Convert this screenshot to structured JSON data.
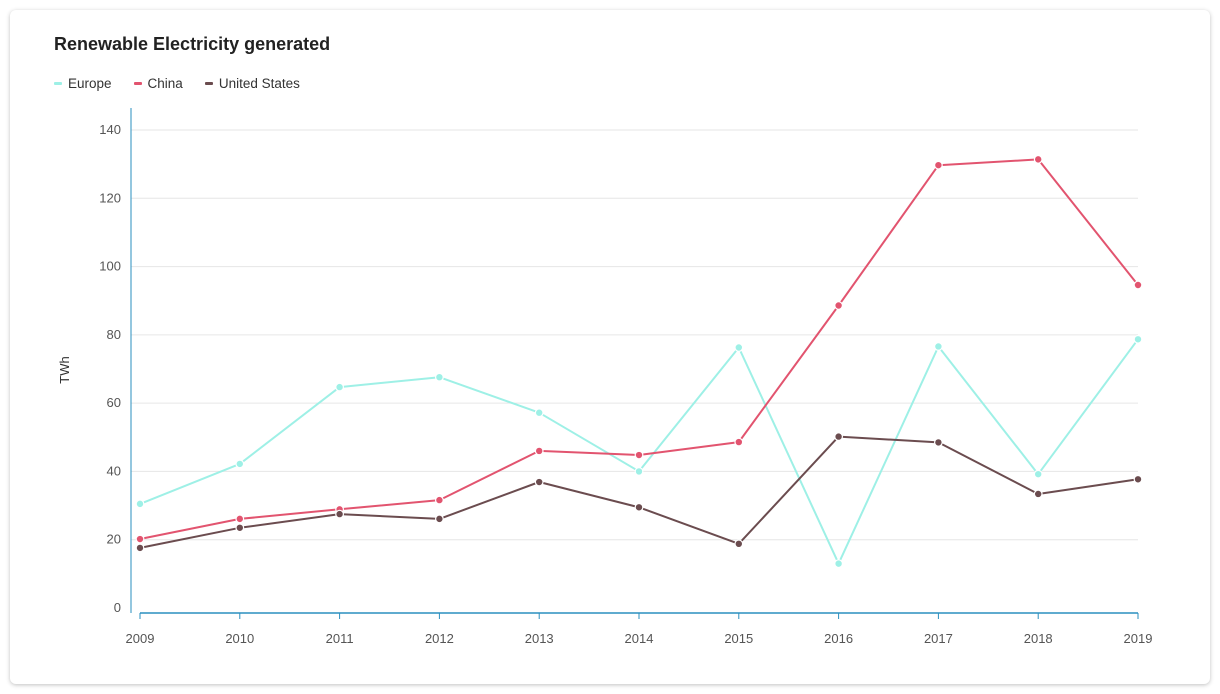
{
  "chart_data": {
    "type": "line",
    "title": "Renewable Electricity generated",
    "xlabel": "",
    "ylabel": "TWh",
    "x": [
      2009,
      2010,
      2011,
      2012,
      2013,
      2014,
      2015,
      2016,
      2017,
      2018,
      2019
    ],
    "ylim": [
      0,
      140
    ],
    "yticks": [
      0,
      20,
      40,
      60,
      80,
      100,
      120,
      140
    ],
    "grid": true,
    "legend_position": "top-left",
    "series": [
      {
        "name": "Europe",
        "color": "#9ef0e6",
        "values": [
          30.5,
          42.2,
          64.7,
          67.6,
          57.2,
          40.0,
          76.3,
          13.0,
          76.6,
          39.2,
          78.7
        ]
      },
      {
        "name": "China",
        "color": "#e2546f",
        "values": [
          20.2,
          26.1,
          28.9,
          31.6,
          46.0,
          44.8,
          48.6,
          88.6,
          129.7,
          131.4,
          94.6
        ]
      },
      {
        "name": "United States",
        "color": "#6b4c4f",
        "values": [
          17.6,
          23.5,
          27.5,
          26.1,
          36.9,
          29.5,
          18.8,
          50.2,
          48.5,
          33.4,
          37.7
        ]
      }
    ]
  },
  "colors": {
    "grid": "#e6e6e6",
    "axis": "#2a8fbf"
  }
}
